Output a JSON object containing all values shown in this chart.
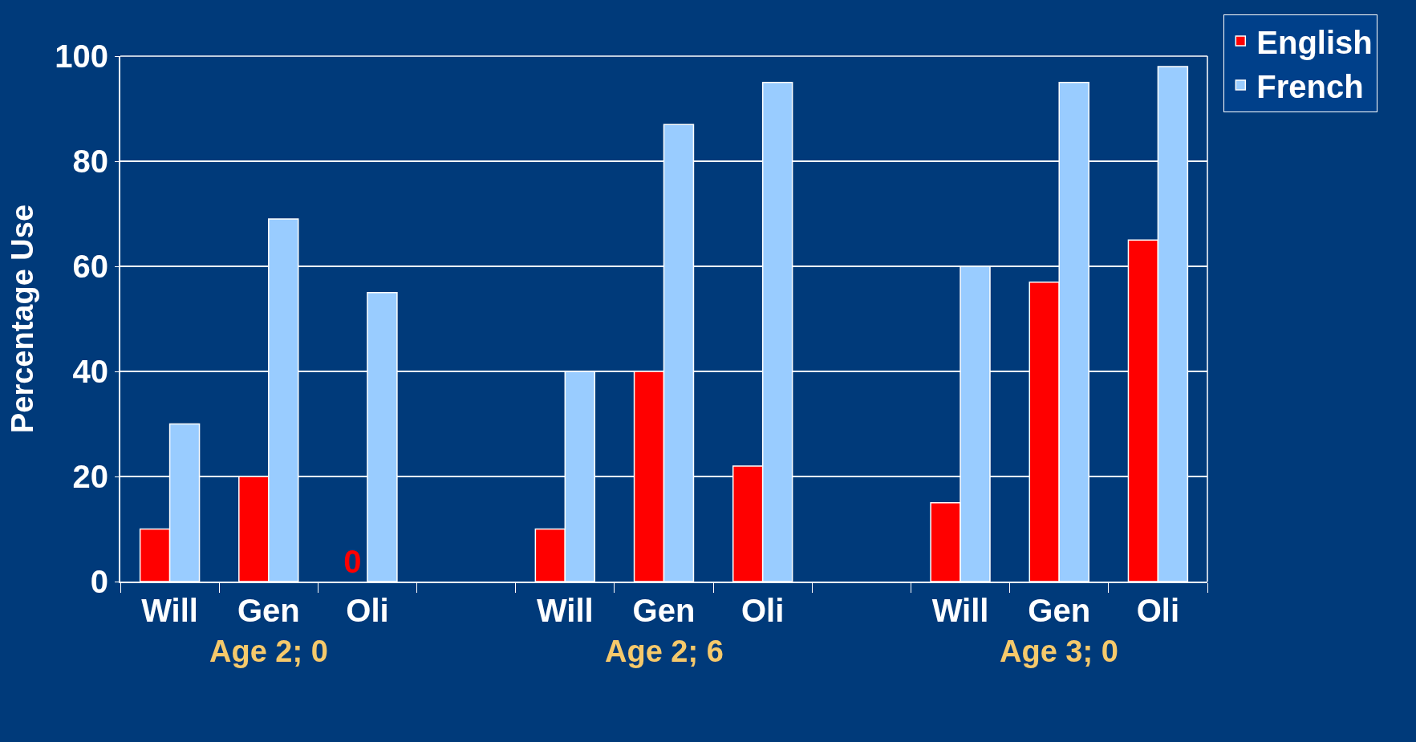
{
  "chart_data": {
    "type": "bar",
    "ylabel": "Percentage Use",
    "categories": [
      "Will",
      "Gen",
      "Oli",
      null,
      "Will",
      "Gen",
      "Oli",
      null,
      "Will",
      "Gen",
      "Oli"
    ],
    "series": [
      {
        "name": "English",
        "color": "#ff0000",
        "values": [
          10,
          20,
          0,
          null,
          10,
          40,
          22,
          null,
          15,
          57,
          65
        ],
        "value_labels": [
          null,
          null,
          "0",
          null,
          null,
          null,
          null,
          null,
          null,
          null,
          null
        ]
      },
      {
        "name": "French",
        "color": "#99ccff",
        "values": [
          30,
          69,
          55,
          null,
          40,
          87,
          95,
          null,
          60,
          95,
          98
        ]
      }
    ],
    "annotations": [
      "Age 2; 0",
      "Age 2; 6",
      "Age 3; 0"
    ],
    "ylim": [
      0,
      100
    ],
    "yticks": [
      0,
      20,
      40,
      60,
      80,
      100
    ],
    "grid": "y",
    "legend": "top right"
  }
}
